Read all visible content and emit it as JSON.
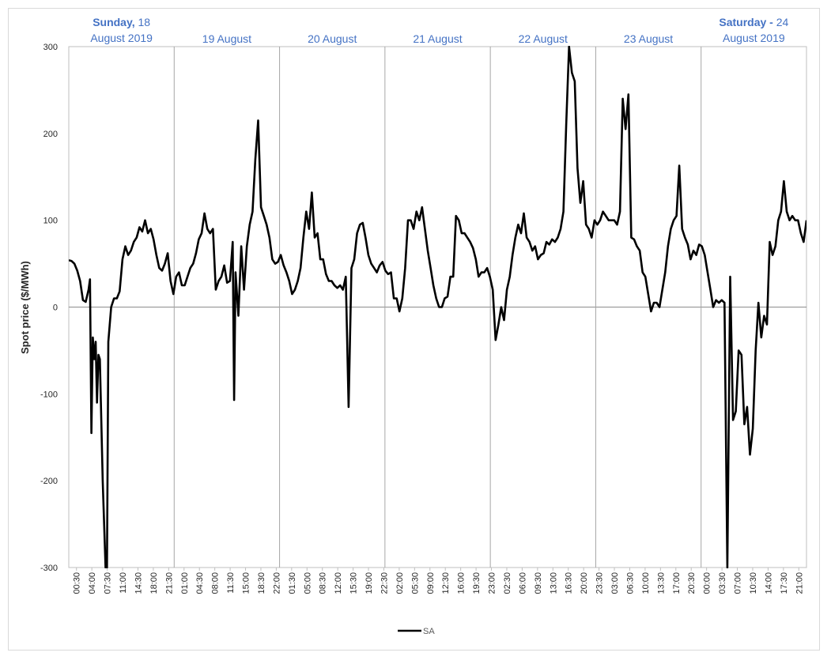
{
  "chart_data": {
    "type": "line",
    "ylabel": "Spot price ($/MWh)",
    "ylim": [
      -300,
      300
    ],
    "y_ticks": [
      300,
      200,
      100,
      0,
      -100,
      -200,
      -300
    ],
    "x_tick_labels": [
      "00:30",
      "04:00",
      "07:30",
      "11:00",
      "14:30",
      "18:00",
      "21:30",
      "01:00",
      "04:30",
      "08:00",
      "11:30",
      "15:00",
      "18:30",
      "22:00",
      "01:30",
      "05:00",
      "08:30",
      "12:00",
      "15:30",
      "19:00",
      "22:30",
      "02:00",
      "05:30",
      "09:00",
      "12:30",
      "16:00",
      "19:30",
      "23:00",
      "02:30",
      "06:00",
      "09:30",
      "13:00",
      "16:30",
      "20:00",
      "23:30",
      "03:00",
      "06:30",
      "10:00",
      "13:30",
      "17:00",
      "20:30",
      "00:00",
      "03:30",
      "07:00",
      "10:30",
      "14:00",
      "17:30",
      "21:00"
    ],
    "days": [
      {
        "line1": "Sunday, 18",
        "line2": "August 2019",
        "bold_prefix": "Sunday,",
        "rest": " 18"
      },
      {
        "line1": "19 August",
        "line2": ""
      },
      {
        "line1": "20 August",
        "line2": ""
      },
      {
        "line1": "21 August",
        "line2": ""
      },
      {
        "line1": "22 August",
        "line2": ""
      },
      {
        "line1": "23 August",
        "line2": ""
      },
      {
        "line1": "Saturday - 24",
        "line2": "August 2019",
        "bold_prefix": "Saturday -",
        "rest": " 24"
      }
    ],
    "legend": {
      "position": "bottom",
      "entries": [
        "SA"
      ]
    },
    "series": [
      {
        "name": "SA",
        "color": "#000000",
        "points": [
          [
            0,
            54
          ],
          [
            1,
            53
          ],
          [
            2,
            50
          ],
          [
            3,
            42
          ],
          [
            4,
            30
          ],
          [
            5,
            8
          ],
          [
            6,
            6
          ],
          [
            7,
            20
          ],
          [
            7.5,
            32
          ],
          [
            8,
            -145
          ],
          [
            8.5,
            -35
          ],
          [
            9,
            -60
          ],
          [
            9.5,
            -40
          ],
          [
            10,
            -110
          ],
          [
            10.5,
            -55
          ],
          [
            11,
            -60
          ],
          [
            12,
            -200
          ],
          [
            13,
            -300
          ],
          [
            13.5,
            -300
          ],
          [
            14,
            -40
          ],
          [
            15,
            0
          ],
          [
            16,
            10
          ],
          [
            17,
            10
          ],
          [
            18,
            18
          ],
          [
            19,
            55
          ],
          [
            20,
            70
          ],
          [
            21,
            60
          ],
          [
            22,
            65
          ],
          [
            23,
            75
          ],
          [
            24,
            80
          ],
          [
            25,
            92
          ],
          [
            26,
            87
          ],
          [
            27,
            100
          ],
          [
            28,
            85
          ],
          [
            29,
            90
          ],
          [
            30,
            78
          ],
          [
            31,
            60
          ],
          [
            32,
            45
          ],
          [
            33,
            42
          ],
          [
            34,
            50
          ],
          [
            35,
            62
          ],
          [
            36,
            30
          ],
          [
            37,
            15
          ],
          [
            38,
            35
          ],
          [
            39,
            40
          ],
          [
            40,
            25
          ],
          [
            41,
            25
          ],
          [
            42,
            35
          ],
          [
            43,
            45
          ],
          [
            44,
            50
          ],
          [
            45,
            62
          ],
          [
            46,
            78
          ],
          [
            47,
            85
          ],
          [
            48,
            108
          ],
          [
            49,
            90
          ],
          [
            50,
            85
          ],
          [
            51,
            90
          ],
          [
            52,
            20
          ],
          [
            53,
            30
          ],
          [
            54,
            35
          ],
          [
            55,
            48
          ],
          [
            56,
            28
          ],
          [
            57,
            30
          ],
          [
            58,
            75
          ],
          [
            58.5,
            -107
          ],
          [
            59,
            40
          ],
          [
            60,
            -10
          ],
          [
            61,
            70
          ],
          [
            62,
            20
          ],
          [
            63,
            70
          ],
          [
            64,
            95
          ],
          [
            65,
            110
          ],
          [
            66,
            170
          ],
          [
            67,
            215
          ],
          [
            68,
            115
          ],
          [
            69,
            105
          ],
          [
            70,
            95
          ],
          [
            71,
            80
          ],
          [
            72,
            55
          ],
          [
            73,
            50
          ],
          [
            74,
            52
          ],
          [
            75,
            60
          ],
          [
            76,
            48
          ],
          [
            77,
            40
          ],
          [
            78,
            30
          ],
          [
            79,
            15
          ],
          [
            80,
            20
          ],
          [
            81,
            30
          ],
          [
            82,
            45
          ],
          [
            83,
            80
          ],
          [
            84,
            110
          ],
          [
            85,
            90
          ],
          [
            86,
            132
          ],
          [
            87,
            80
          ],
          [
            88,
            85
          ],
          [
            89,
            55
          ],
          [
            90,
            55
          ],
          [
            91,
            38
          ],
          [
            92,
            30
          ],
          [
            93,
            30
          ],
          [
            94,
            25
          ],
          [
            95,
            22
          ],
          [
            96,
            25
          ],
          [
            97,
            20
          ],
          [
            98,
            35
          ],
          [
            99,
            -115
          ],
          [
            100,
            45
          ],
          [
            101,
            55
          ],
          [
            102,
            85
          ],
          [
            103,
            95
          ],
          [
            104,
            97
          ],
          [
            105,
            80
          ],
          [
            106,
            60
          ],
          [
            107,
            50
          ],
          [
            108,
            45
          ],
          [
            109,
            40
          ],
          [
            110,
            48
          ],
          [
            111,
            52
          ],
          [
            112,
            42
          ],
          [
            113,
            38
          ],
          [
            114,
            40
          ],
          [
            115,
            10
          ],
          [
            116,
            10
          ],
          [
            117,
            -5
          ],
          [
            118,
            10
          ],
          [
            119,
            45
          ],
          [
            120,
            100
          ],
          [
            121,
            100
          ],
          [
            122,
            90
          ],
          [
            123,
            110
          ],
          [
            124,
            100
          ],
          [
            125,
            115
          ],
          [
            126,
            90
          ],
          [
            127,
            65
          ],
          [
            128,
            45
          ],
          [
            129,
            25
          ],
          [
            130,
            10
          ],
          [
            131,
            0
          ],
          [
            132,
            0
          ],
          [
            133,
            10
          ],
          [
            134,
            12
          ],
          [
            135,
            35
          ],
          [
            136,
            35
          ],
          [
            137,
            105
          ],
          [
            138,
            100
          ],
          [
            139,
            85
          ],
          [
            140,
            85
          ],
          [
            141,
            80
          ],
          [
            142,
            75
          ],
          [
            143,
            68
          ],
          [
            144,
            55
          ],
          [
            145,
            35
          ],
          [
            146,
            40
          ],
          [
            147,
            40
          ],
          [
            148,
            45
          ],
          [
            149,
            35
          ],
          [
            150,
            20
          ],
          [
            151,
            -38
          ],
          [
            152,
            -20
          ],
          [
            153,
            0
          ],
          [
            154,
            -15
          ],
          [
            155,
            20
          ],
          [
            156,
            35
          ],
          [
            157,
            60
          ],
          [
            158,
            80
          ],
          [
            159,
            95
          ],
          [
            160,
            85
          ],
          [
            161,
            108
          ],
          [
            162,
            80
          ],
          [
            163,
            75
          ],
          [
            164,
            65
          ],
          [
            165,
            70
          ],
          [
            166,
            55
          ],
          [
            167,
            60
          ],
          [
            168,
            62
          ],
          [
            169,
            75
          ],
          [
            170,
            72
          ],
          [
            171,
            78
          ],
          [
            172,
            75
          ],
          [
            173,
            80
          ],
          [
            174,
            90
          ],
          [
            175,
            110
          ],
          [
            176,
            210
          ],
          [
            177,
            300
          ],
          [
            178,
            270
          ],
          [
            179,
            260
          ],
          [
            180,
            160
          ],
          [
            181,
            120
          ],
          [
            182,
            145
          ],
          [
            183,
            95
          ],
          [
            184,
            90
          ],
          [
            185,
            80
          ],
          [
            186,
            100
          ],
          [
            187,
            95
          ],
          [
            188,
            100
          ],
          [
            189,
            110
          ],
          [
            190,
            105
          ],
          [
            191,
            100
          ],
          [
            192,
            100
          ],
          [
            193,
            100
          ],
          [
            194,
            95
          ],
          [
            195,
            110
          ],
          [
            196,
            240
          ],
          [
            197,
            205
          ],
          [
            198,
            245
          ],
          [
            199,
            80
          ],
          [
            200,
            78
          ],
          [
            201,
            70
          ],
          [
            202,
            65
          ],
          [
            203,
            40
          ],
          [
            204,
            35
          ],
          [
            205,
            15
          ],
          [
            206,
            -5
          ],
          [
            207,
            5
          ],
          [
            208,
            5
          ],
          [
            209,
            0
          ],
          [
            210,
            20
          ],
          [
            211,
            40
          ],
          [
            212,
            70
          ],
          [
            213,
            90
          ],
          [
            214,
            100
          ],
          [
            215,
            105
          ],
          [
            216,
            163
          ],
          [
            217,
            90
          ],
          [
            218,
            80
          ],
          [
            219,
            72
          ],
          [
            220,
            55
          ],
          [
            221,
            65
          ],
          [
            222,
            60
          ],
          [
            223,
            72
          ],
          [
            224,
            70
          ],
          [
            225,
            60
          ],
          [
            226,
            40
          ],
          [
            227,
            20
          ],
          [
            228,
            0
          ],
          [
            229,
            8
          ],
          [
            230,
            5
          ],
          [
            231,
            8
          ],
          [
            232,
            5
          ],
          [
            233,
            -300
          ],
          [
            234,
            35
          ],
          [
            235,
            -130
          ],
          [
            236,
            -120
          ],
          [
            237,
            -50
          ],
          [
            238,
            -55
          ],
          [
            239,
            -135
          ],
          [
            240,
            -115
          ],
          [
            241,
            -170
          ],
          [
            242,
            -140
          ],
          [
            243,
            -50
          ],
          [
            244,
            5
          ],
          [
            245,
            -35
          ],
          [
            246,
            -10
          ],
          [
            247,
            -20
          ],
          [
            248,
            75
          ],
          [
            249,
            60
          ],
          [
            250,
            70
          ],
          [
            251,
            100
          ],
          [
            252,
            110
          ],
          [
            253,
            145
          ],
          [
            254,
            110
          ],
          [
            255,
            100
          ],
          [
            256,
            105
          ],
          [
            257,
            100
          ],
          [
            258,
            100
          ],
          [
            259,
            85
          ],
          [
            260,
            75
          ],
          [
            261,
            100
          ]
        ]
      }
    ]
  }
}
